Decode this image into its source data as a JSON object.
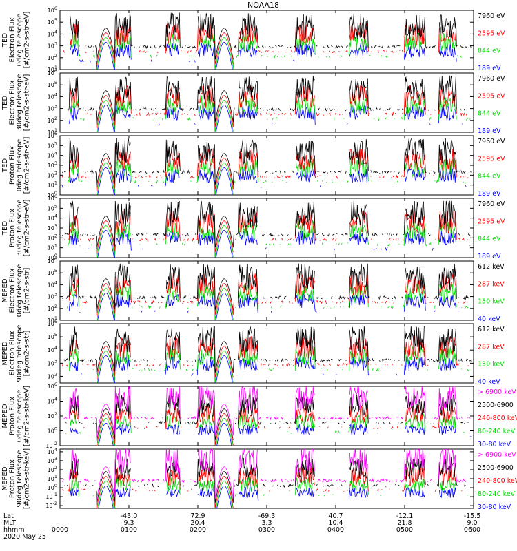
{
  "chart_data": {
    "type": "line",
    "title": "NOAA18",
    "grid": false,
    "x_range": [
      "0000",
      "0600"
    ],
    "panels": [
      {
        "ylabel_lines": [
          "TED",
          "Electron Flux",
          "0deg telescope",
          "[#/cm2-s-str-eV]"
        ],
        "y_ticks": [
          [
            "10",
            "1"
          ],
          [
            "10",
            "2"
          ],
          [
            "10",
            "3"
          ],
          [
            "10",
            "4"
          ],
          [
            "10",
            "5"
          ],
          [
            "10",
            "6"
          ]
        ],
        "ylim": [
          1,
          6
        ],
        "series": [
          {
            "name": "7960 eV",
            "color": "#000000"
          },
          {
            "name": "2595 eV",
            "color": "#ff0000"
          },
          {
            "name": "844 eV",
            "color": "#00dd00"
          },
          {
            "name": "189 eV",
            "color": "#0000ff"
          }
        ]
      },
      {
        "ylabel_lines": [
          "TED",
          "Electron Flux",
          "30deg telescope",
          "[#/cm2-s-str-eV]"
        ],
        "y_ticks": [
          [
            "10",
            "1"
          ],
          [
            "10",
            "2"
          ],
          [
            "10",
            "3"
          ],
          [
            "10",
            "4"
          ],
          [
            "10",
            "5"
          ],
          [
            "10",
            "6"
          ]
        ],
        "ylim": [
          1,
          6
        ],
        "series": [
          {
            "name": "7960 eV",
            "color": "#000000"
          },
          {
            "name": "2595 eV",
            "color": "#ff0000"
          },
          {
            "name": "844 eV",
            "color": "#00dd00"
          },
          {
            "name": "189 eV",
            "color": "#0000ff"
          }
        ]
      },
      {
        "ylabel_lines": [
          "TED",
          "Proton Flux",
          "0deg telescope",
          "[#/cm2-s-str-eV]"
        ],
        "y_ticks": [
          [
            "10",
            "0"
          ],
          [
            "10",
            "1"
          ],
          [
            "10",
            "2"
          ],
          [
            "10",
            "3"
          ],
          [
            "10",
            "4"
          ],
          [
            "10",
            "5"
          ],
          [
            "10",
            "6"
          ]
        ],
        "ylim": [
          0,
          6
        ],
        "series": [
          {
            "name": "7960 eV",
            "color": "#000000"
          },
          {
            "name": "2595 eV",
            "color": "#ff0000"
          },
          {
            "name": "844 eV",
            "color": "#00dd00"
          },
          {
            "name": "189 eV",
            "color": "#0000ff"
          }
        ]
      },
      {
        "ylabel_lines": [
          "TED",
          "Proton Flux",
          "30deg telescope",
          "[#/cm2-s-str-eV]"
        ],
        "y_ticks": [
          [
            "10",
            "0"
          ],
          [
            "10",
            "1"
          ],
          [
            "10",
            "2"
          ],
          [
            "10",
            "3"
          ],
          [
            "10",
            "4"
          ],
          [
            "10",
            "5"
          ],
          [
            "10",
            "6"
          ]
        ],
        "ylim": [
          0,
          6
        ],
        "series": [
          {
            "name": "7960 eV",
            "color": "#000000"
          },
          {
            "name": "2595 eV",
            "color": "#ff0000"
          },
          {
            "name": "844 eV",
            "color": "#00dd00"
          },
          {
            "name": "189 eV",
            "color": "#0000ff"
          }
        ]
      },
      {
        "ylabel_lines": [
          "MEPED",
          "Electron Flux",
          "0deg telescope",
          "[#/cm2-s-str]"
        ],
        "y_ticks": [
          [
            "10",
            "1"
          ],
          [
            "10",
            "2"
          ],
          [
            "10",
            "3"
          ],
          [
            "10",
            "4"
          ],
          [
            "10",
            "5"
          ],
          [
            "10",
            "6"
          ]
        ],
        "ylim": [
          1,
          6
        ],
        "series": [
          {
            "name": "612 keV",
            "color": "#000000"
          },
          {
            "name": "287 keV",
            "color": "#ff0000"
          },
          {
            "name": "130 keV",
            "color": "#00dd00"
          },
          {
            "name": "40 keV",
            "color": "#0000ff"
          }
        ]
      },
      {
        "ylabel_lines": [
          "MEPED",
          "Electron Flux",
          "90deg telescope",
          "[#/cm2-s-str]"
        ],
        "y_ticks": [
          [
            "10",
            "2"
          ],
          [
            "10",
            "3"
          ],
          [
            "10",
            "4"
          ],
          [
            "10",
            "5"
          ],
          [
            "10",
            "6"
          ]
        ],
        "ylim": [
          1.5,
          6
        ],
        "series": [
          {
            "name": "612 keV",
            "color": "#000000"
          },
          {
            "name": "287 keV",
            "color": "#ff0000"
          },
          {
            "name": "130 keV",
            "color": "#00dd00"
          },
          {
            "name": "40 keV",
            "color": "#0000ff"
          }
        ]
      },
      {
        "ylabel_lines": [
          "MEPED",
          "Proton Flux",
          "0deg telescope",
          "[#/cm2-s-str-keV]"
        ],
        "y_ticks": [
          [
            "10",
            "-2"
          ],
          [
            "10",
            "0"
          ],
          [
            "10",
            "2"
          ],
          [
            "10",
            "4"
          ],
          [
            "10",
            "6"
          ]
        ],
        "ylim": [
          -2,
          6
        ],
        "series": [
          {
            "name": "> 6900 keV",
            "color": "#ff00ff"
          },
          {
            "name": "2500-6900",
            "color": "#000000"
          },
          {
            "name": "240-800 keV",
            "color": "#ff0000"
          },
          {
            "name": "80-240 keV",
            "color": "#00dd00"
          },
          {
            "name": "30-80 keV",
            "color": "#0000ff"
          }
        ]
      },
      {
        "ylabel_lines": [
          "MEPED",
          "Proton Flux",
          "90deg telescope",
          "[#/cm2-s-str-keV]"
        ],
        "y_ticks": [
          [
            "10",
            "-2"
          ],
          [
            "10",
            "-1"
          ],
          [
            "10",
            "0"
          ],
          [
            "10",
            "1"
          ],
          [
            "10",
            "2"
          ],
          [
            "10",
            "3"
          ],
          [
            "10",
            "4"
          ]
        ],
        "ylim": [
          -2.3,
          4.3
        ],
        "series": [
          {
            "name": "> 6900 keV",
            "color": "#ff00ff"
          },
          {
            "name": "2500-6900",
            "color": "#000000"
          },
          {
            "name": "240-800 keV",
            "color": "#ff0000"
          },
          {
            "name": "80-240 keV",
            "color": "#00dd00"
          },
          {
            "name": "30-80 keV",
            "color": "#0000ff"
          }
        ]
      }
    ],
    "x_axis": {
      "rows": [
        {
          "label": "Lat",
          "values": [
            "-43.0",
            "72.9",
            "-69.3",
            "40.7",
            "-12.1",
            "-15.5"
          ]
        },
        {
          "label": "MLT",
          "values": [
            "9.3",
            "20.4",
            "3.3",
            "10.4",
            "21.8",
            "9.0"
          ]
        },
        {
          "label": "hhmm",
          "values": [
            "0000",
            "0100",
            "0200",
            "0300",
            "0400",
            "0500",
            "0600"
          ]
        }
      ],
      "date": "2020 May 25"
    },
    "passes": [
      {
        "center_hhmm": "0040",
        "peak_log_flux": 2.3
      },
      {
        "center_hhmm": "0223",
        "peak_log_flux": 2.2
      }
    ]
  }
}
